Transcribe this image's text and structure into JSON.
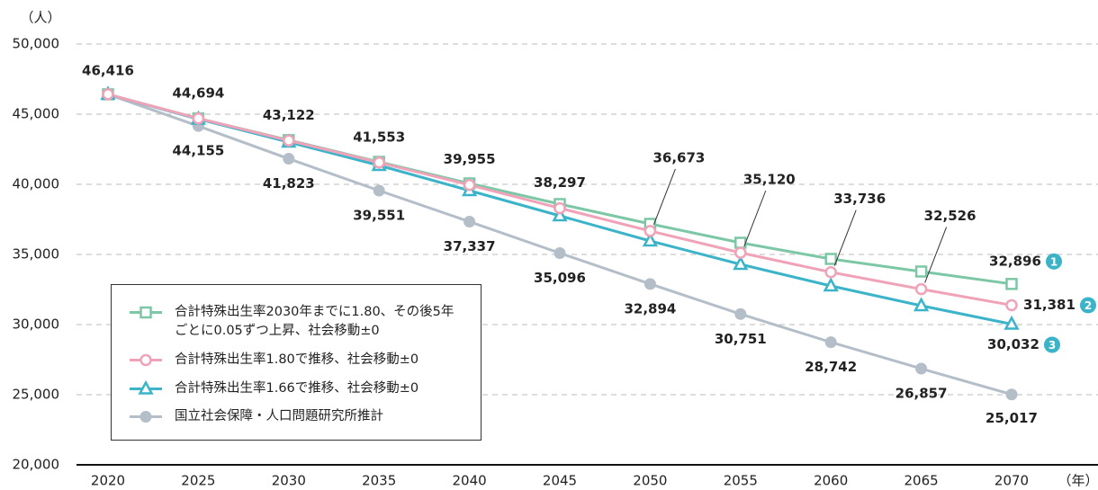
{
  "chart_data": {
    "type": "line",
    "y_unit_label": "（人）",
    "x_unit_label": "（年）",
    "x": [
      2020,
      2025,
      2030,
      2035,
      2040,
      2045,
      2050,
      2055,
      2060,
      2065,
      2070
    ],
    "xlim": [
      2020,
      2070
    ],
    "xticks": [
      2020,
      2025,
      2030,
      2035,
      2040,
      2045,
      2050,
      2055,
      2060,
      2065,
      2070
    ],
    "ylim": [
      20000,
      50000
    ],
    "yticks": [
      {
        "value": 20000,
        "label": "20,000"
      },
      {
        "value": 25000,
        "label": "25,000"
      },
      {
        "value": 30000,
        "label": "30,000"
      },
      {
        "value": 35000,
        "label": "35,000"
      },
      {
        "value": 40000,
        "label": "40,000"
      },
      {
        "value": 45000,
        "label": "45,000"
      },
      {
        "value": 50000,
        "label": "50,000"
      }
    ],
    "grid": true,
    "series": [
      {
        "name": "合計特殊出生率2030年までに1.80、その後5年ごとに0.05ずつ上昇、社会移動±0",
        "color": "#7cc7a5",
        "marker": "square",
        "badge": "1",
        "values": [
          46416,
          44700,
          43150,
          41600,
          40064,
          38590,
          37180,
          35833,
          34680,
          33782,
          32896
        ],
        "value_labels": [
          null,
          null,
          null,
          null,
          null,
          null,
          null,
          null,
          null,
          null,
          "32,896"
        ]
      },
      {
        "name": "合計特殊出生率1.80で推移、社会移動±0",
        "color": "#f0a3b8",
        "marker": "circle",
        "badge": "2",
        "values": [
          46416,
          44694,
          43122,
          41553,
          39955,
          38297,
          36673,
          35120,
          33736,
          32526,
          31381
        ],
        "value_labels": [
          "46,416",
          "44,694",
          "43,122",
          "41,553",
          "39,955",
          "38,297",
          "36,673",
          "35,120",
          "33,736",
          "32,526",
          "31,381"
        ]
      },
      {
        "name": "合計特殊出生率1.66で推移、社会移動±0",
        "color": "#3bb3c9",
        "marker": "triangle",
        "badge": "3",
        "values": [
          46416,
          44650,
          43013,
          41346,
          39551,
          37756,
          35962,
          34295,
          32756,
          31346,
          30032
        ],
        "value_labels": [
          null,
          null,
          null,
          null,
          null,
          null,
          null,
          null,
          null,
          null,
          "30,032"
        ]
      },
      {
        "name": "国立社会保障・人口問題研究所推計",
        "color": "#b3bec8",
        "marker": "dot",
        "values": [
          46416,
          44155,
          41823,
          39551,
          37337,
          35096,
          32894,
          30751,
          28742,
          26857,
          25017
        ],
        "value_labels": [
          null,
          "44,155",
          "41,823",
          "39,551",
          "37,337",
          "35,096",
          "32,894",
          "30,751",
          "28,742",
          "26,857",
          "25,017"
        ]
      }
    ]
  }
}
